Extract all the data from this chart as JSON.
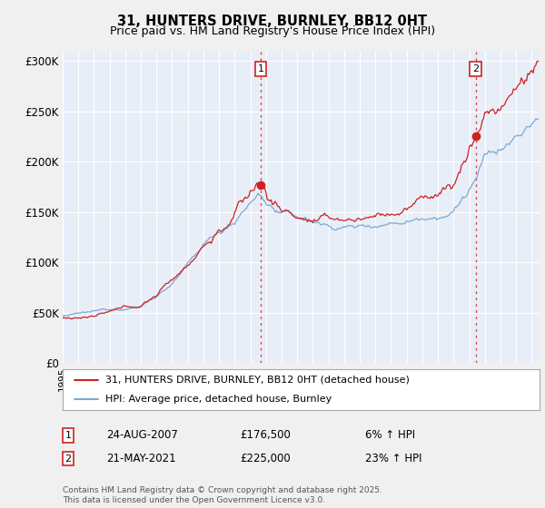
{
  "title": "31, HUNTERS DRIVE, BURNLEY, BB12 0HT",
  "subtitle": "Price paid vs. HM Land Registry's House Price Index (HPI)",
  "ylim": [
    0,
    310000
  ],
  "yticks": [
    0,
    50000,
    100000,
    150000,
    200000,
    250000,
    300000
  ],
  "ytick_labels": [
    "£0",
    "£50K",
    "£100K",
    "£150K",
    "£200K",
    "£250K",
    "£300K"
  ],
  "background_color": "#f0f0f0",
  "plot_bg": "#e8eef8",
  "grid_color": "#ffffff",
  "hpi_color": "#7aaad0",
  "price_color": "#cc2222",
  "vline_color": "#dd4444",
  "annotation1": {
    "label": "1",
    "date": "24-AUG-2007",
    "price": "£176,500",
    "hpi": "6% ↑ HPI"
  },
  "annotation2": {
    "label": "2",
    "date": "21-MAY-2021",
    "price": "£225,000",
    "hpi": "23% ↑ HPI"
  },
  "legend_line1": "31, HUNTERS DRIVE, BURNLEY, BB12 0HT (detached house)",
  "legend_line2": "HPI: Average price, detached house, Burnley",
  "footer": "Contains HM Land Registry data © Crown copyright and database right 2025.\nThis data is licensed under the Open Government Licence v3.0.",
  "x_start_year": 1995,
  "x_end_year": 2025,
  "sale1_year": 2007.667,
  "sale1_price": 176500,
  "sale2_year": 2021.417,
  "sale2_price": 225000
}
